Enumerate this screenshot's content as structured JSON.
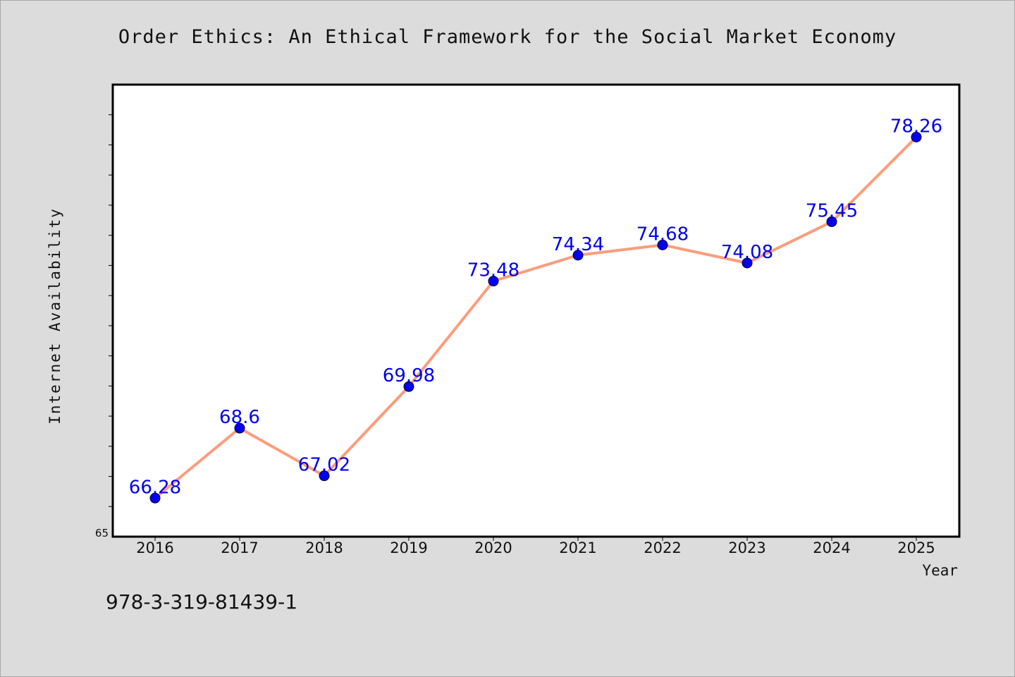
{
  "chart_data": {
    "type": "line",
    "title": "Order Ethics: An Ethical Framework for the Social Market Economy",
    "xlabel": "Year",
    "ylabel": "Internet Availability",
    "ylim": [
      65,
      80
    ],
    "y_tick_labels": [
      "65"
    ],
    "categories": [
      "2016",
      "2017",
      "2018",
      "2019",
      "2020",
      "2021",
      "2022",
      "2023",
      "2024",
      "2025"
    ],
    "series": [
      {
        "values": [
          66.28,
          68.6,
          67.02,
          69.98,
          73.48,
          74.34,
          74.68,
          74.08,
          75.45,
          78.26
        ],
        "labels": [
          "66.28",
          "68.6",
          "67.02",
          "69.98",
          "73.48",
          "74.34",
          "74.68",
          "74.08",
          "75.45",
          "78.26"
        ],
        "line_color": "#fa9d7d",
        "marker_color": "#0000ee",
        "label_color": "#0000ee"
      }
    ],
    "grid": false,
    "legend": "none"
  },
  "footer_text": "978-3-319-81439-1",
  "colors": {
    "background": "#dcdcdc",
    "plot_background": "#ffffff",
    "axes": "#000000"
  }
}
